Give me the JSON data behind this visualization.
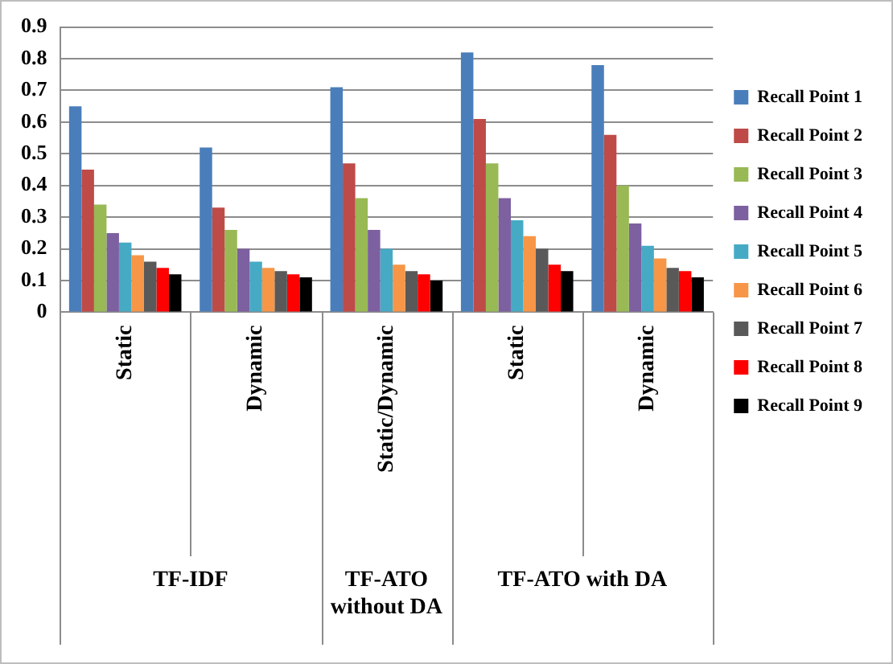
{
  "chart_data": {
    "type": "bar",
    "categories": [
      "Static",
      "Dynamic",
      "Static/Dynamic",
      "Static",
      "Dynamic"
    ],
    "series": [
      {
        "name": "Recall Point 1",
        "color": "#4a7ebb",
        "values": [
          0.65,
          0.52,
          0.71,
          0.82,
          0.78
        ]
      },
      {
        "name": "Recall Point 2",
        "color": "#be4b48",
        "values": [
          0.45,
          0.33,
          0.47,
          0.61,
          0.56
        ]
      },
      {
        "name": "Recall Point 3",
        "color": "#98b954",
        "values": [
          0.34,
          0.26,
          0.36,
          0.47,
          0.4
        ]
      },
      {
        "name": "Recall Point 4",
        "color": "#7d60a0",
        "values": [
          0.25,
          0.2,
          0.26,
          0.36,
          0.28
        ]
      },
      {
        "name": "Recall Point 5",
        "color": "#46aac5",
        "values": [
          0.22,
          0.16,
          0.2,
          0.29,
          0.21
        ]
      },
      {
        "name": "Recall Point 6",
        "color": "#f79646",
        "values": [
          0.18,
          0.14,
          0.15,
          0.24,
          0.17
        ]
      },
      {
        "name": "Recall Point 7",
        "color": "#595959",
        "values": [
          0.16,
          0.13,
          0.13,
          0.2,
          0.14
        ]
      },
      {
        "name": "Recall Point 8",
        "color": "#ff0000",
        "values": [
          0.14,
          0.12,
          0.12,
          0.15,
          0.13
        ]
      },
      {
        "name": "Recall Point 9",
        "color": "#000000",
        "values": [
          0.12,
          0.11,
          0.1,
          0.13,
          0.11
        ]
      }
    ],
    "annotations": [
      "TF-IDF",
      "TF-ATO without DA",
      "TF-ATO with DA"
    ],
    "ylim": [
      0,
      0.9
    ],
    "yticks": [
      0,
      0.1,
      0.2,
      0.3,
      0.4,
      0.5,
      0.6,
      0.7,
      0.8,
      0.9
    ],
    "grid": "y",
    "legend": "right"
  }
}
